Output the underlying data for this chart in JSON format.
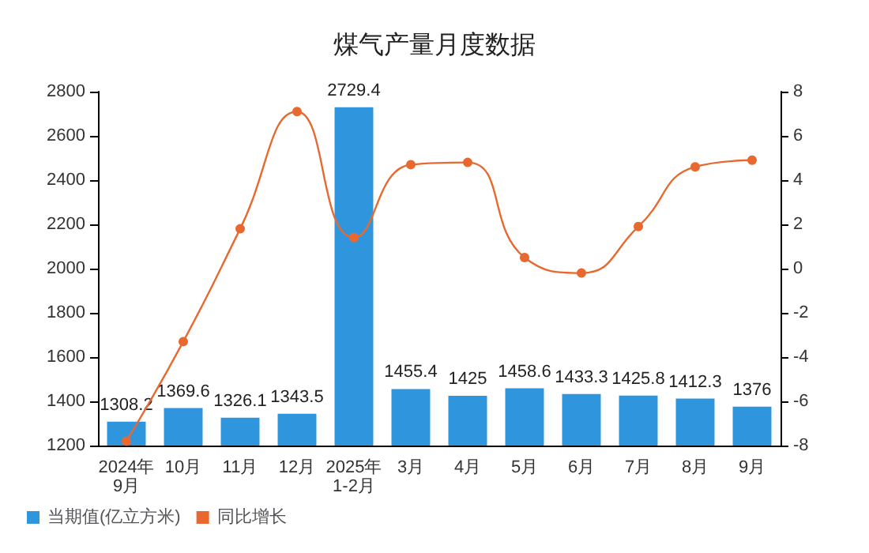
{
  "chart_data": {
    "type": "bar",
    "title": "煤气产量月度数据",
    "categories": [
      "2024年\n9月",
      "10月",
      "11月",
      "12月",
      "2025年\n1-2月",
      "3月",
      "4月",
      "5月",
      "6月",
      "7月",
      "8月",
      "9月"
    ],
    "series": [
      {
        "name": "当期值(亿立方米)",
        "color": "#2f96dd",
        "values": [
          1308.2,
          1369.6,
          1326.1,
          1343.5,
          2729.4,
          1455.4,
          1425,
          1458.6,
          1433.3,
          1425.8,
          1412.3,
          1376
        ],
        "value_labels": [
          "1308.2",
          "1369.6",
          "1326.1",
          "1343.5",
          "2729.4",
          "1455.4",
          "1425",
          "1458.6",
          "1433.3",
          "1425.8",
          "1412.3",
          "1376"
        ]
      },
      {
        "name": "同比增长",
        "type": "line",
        "axis": "y2",
        "color": "#e8692f",
        "marker": "circle",
        "values": [
          -7.8,
          -3.3,
          1.8,
          7.1,
          1.4,
          4.7,
          4.8,
          0.5,
          -0.2,
          1.9,
          4.6,
          4.9
        ]
      }
    ],
    "ylim": [
      1200,
      2800
    ],
    "yticks": [
      1200,
      1400,
      1600,
      1800,
      2000,
      2200,
      2400,
      2600,
      2800
    ],
    "y2lim": [
      -8,
      8
    ],
    "y2ticks": [
      -8,
      -6,
      -4,
      -2,
      0,
      2,
      4,
      6,
      8
    ],
    "grid": false,
    "legend": "bottom left"
  }
}
